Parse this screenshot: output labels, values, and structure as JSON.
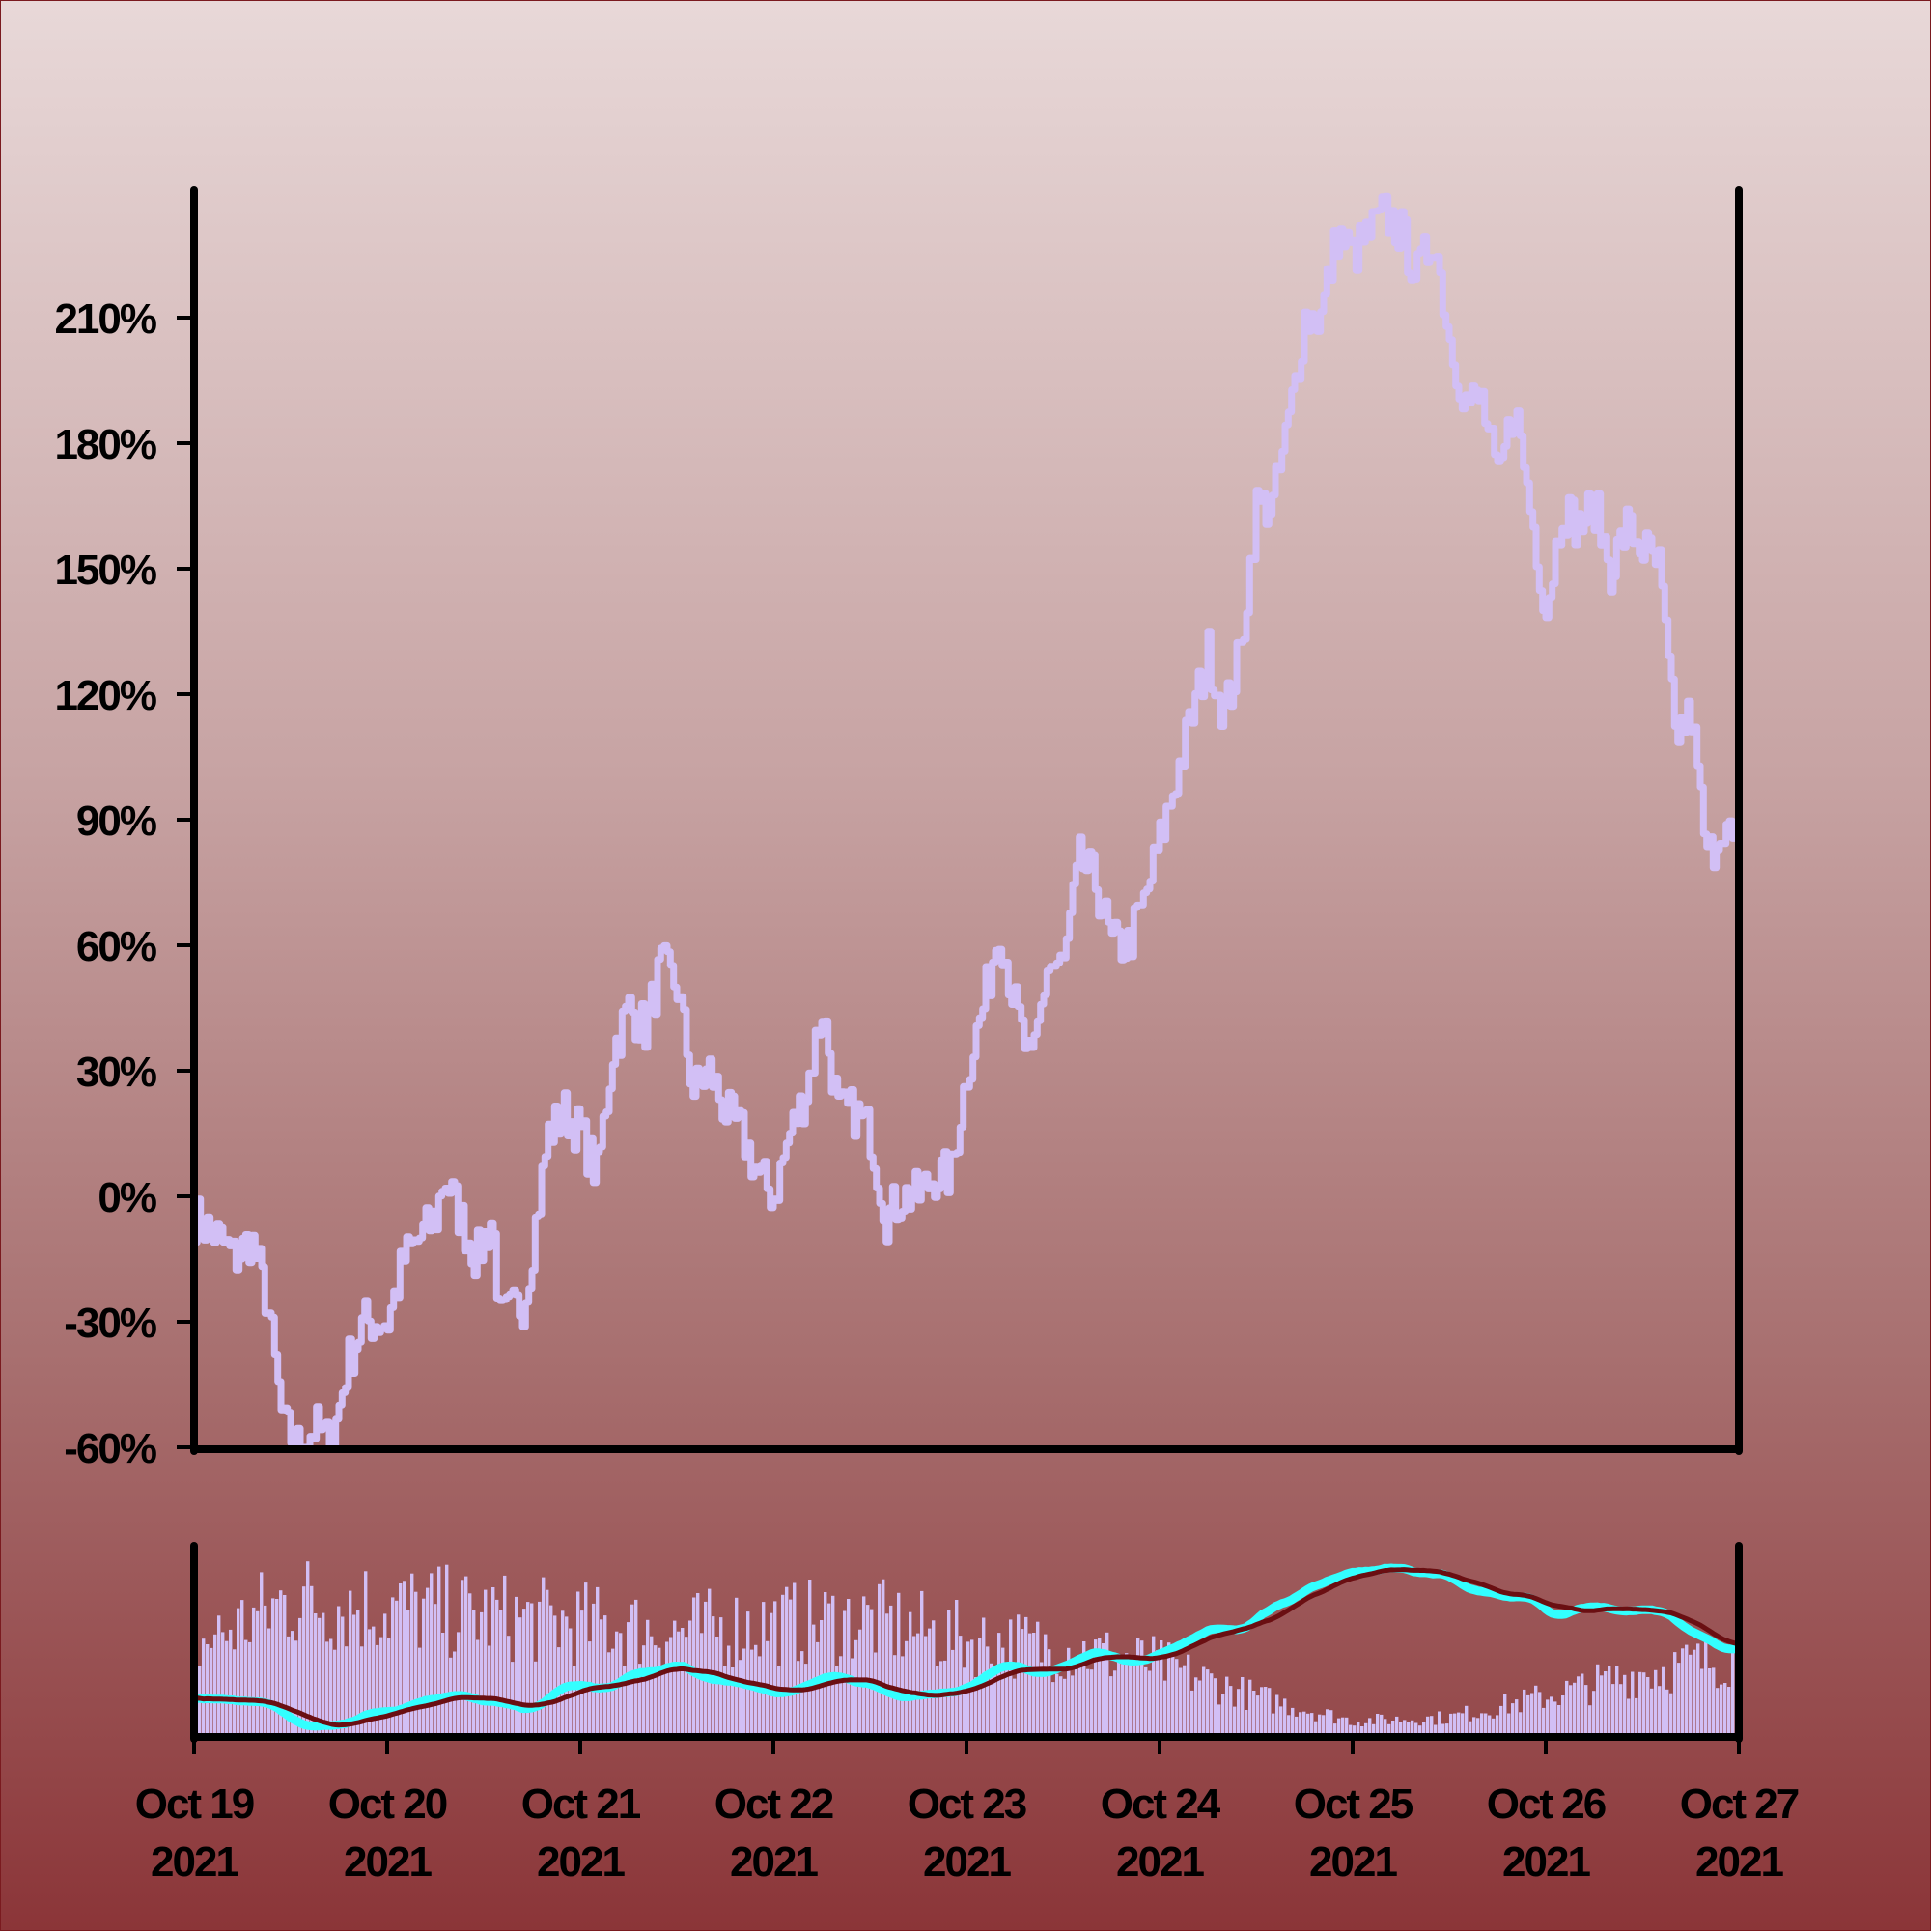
{
  "colors": {
    "price_line": "#d2bff5",
    "volume_bars": "#d2bff5",
    "ma_fast": "#33ffff",
    "ma_slow": "#6a0f12",
    "axes": "#000000",
    "background_top": "#e8d8d8",
    "background_bottom": "#8b3538"
  },
  "chart_data": [
    {
      "type": "line",
      "title": "",
      "xlabel": "",
      "ylabel": "",
      "y_unit": "%",
      "xlim": [
        "2021-10-19",
        "2021-10-27"
      ],
      "ylim": [
        -60,
        240
      ],
      "yticks": [
        -60,
        -30,
        0,
        30,
        60,
        90,
        120,
        150,
        180,
        210
      ],
      "ytick_labels": [
        "-60%",
        "-30%",
        "0%",
        "30%",
        "60%",
        "90%",
        "120%",
        "150%",
        "180%",
        "210%"
      ],
      "grid": false,
      "series": [
        {
          "points": [
            [
              "2021-10-19T00:00",
              -5
            ],
            [
              "2021-10-19T03:00",
              -10
            ],
            [
              "2021-10-19T05:00",
              -15
            ],
            [
              "2021-10-19T07:00",
              -10
            ],
            [
              "2021-10-19T09:00",
              -25
            ],
            [
              "2021-10-19T11:00",
              -55
            ],
            [
              "2021-10-19T13:00",
              -60
            ],
            [
              "2021-10-19T15:00",
              -55
            ],
            [
              "2021-10-19T17:00",
              -60
            ],
            [
              "2021-10-19T19:00",
              -40
            ],
            [
              "2021-10-19T21:00",
              -30
            ],
            [
              "2021-10-20T00:00",
              -30
            ],
            [
              "2021-10-20T02:00",
              -15
            ],
            [
              "2021-10-20T04:00",
              -10
            ],
            [
              "2021-10-20T06:00",
              -5
            ],
            [
              "2021-10-20T07:00",
              5
            ],
            [
              "2021-10-20T09:00",
              -5
            ],
            [
              "2021-10-20T11:00",
              -15
            ],
            [
              "2021-10-20T13:00",
              -5
            ],
            [
              "2021-10-20T14:00",
              -30
            ],
            [
              "2021-10-20T17:00",
              -25
            ],
            [
              "2021-10-20T20:00",
              15
            ],
            [
              "2021-10-20T22:00",
              20
            ],
            [
              "2021-10-21T00:00",
              15
            ],
            [
              "2021-10-21T02:00",
              5
            ],
            [
              "2021-10-21T04:00",
              35
            ],
            [
              "2021-10-21T06:00",
              45
            ],
            [
              "2021-10-21T08:00",
              40
            ],
            [
              "2021-10-21T10:00",
              55
            ],
            [
              "2021-10-21T12:00",
              50
            ],
            [
              "2021-10-21T14:00",
              25
            ],
            [
              "2021-10-21T16:00",
              30
            ],
            [
              "2021-10-21T18:00",
              20
            ],
            [
              "2021-10-21T20:00",
              15
            ],
            [
              "2021-10-21T22:00",
              5
            ],
            [
              "2021-10-22T00:00",
              0
            ],
            [
              "2021-10-22T02:00",
              15
            ],
            [
              "2021-10-22T04:00",
              25
            ],
            [
              "2021-10-22T06:00",
              45
            ],
            [
              "2021-10-22T08:00",
              20
            ],
            [
              "2021-10-22T10:00",
              20
            ],
            [
              "2021-10-22T12:00",
              15
            ],
            [
              "2021-10-22T14:00",
              -5
            ],
            [
              "2021-10-22T16:00",
              0
            ],
            [
              "2021-10-22T18:00",
              0
            ],
            [
              "2021-10-22T20:00",
              5
            ],
            [
              "2021-10-22T22:00",
              5
            ],
            [
              "2021-10-23T00:00",
              30
            ],
            [
              "2021-10-23T02:00",
              45
            ],
            [
              "2021-10-23T04:00",
              65
            ],
            [
              "2021-10-23T06:00",
              45
            ],
            [
              "2021-10-23T08:00",
              30
            ],
            [
              "2021-10-23T10:00",
              55
            ],
            [
              "2021-10-23T12:00",
              55
            ],
            [
              "2021-10-23T14:00",
              80
            ],
            [
              "2021-10-23T16:00",
              75
            ],
            [
              "2021-10-23T18:00",
              60
            ],
            [
              "2021-10-23T20:00",
              60
            ],
            [
              "2021-10-23T22:00",
              70
            ],
            [
              "2021-10-24T00:00",
              85
            ],
            [
              "2021-10-24T02:00",
              100
            ],
            [
              "2021-10-24T04:00",
              115
            ],
            [
              "2021-10-24T06:00",
              130
            ],
            [
              "2021-10-24T08:00",
              115
            ],
            [
              "2021-10-24T10:00",
              130
            ],
            [
              "2021-10-24T12:00",
              165
            ],
            [
              "2021-10-24T14:00",
              165
            ],
            [
              "2021-10-24T16:00",
              185
            ],
            [
              "2021-10-24T18:00",
              210
            ],
            [
              "2021-10-24T20:00",
              210
            ],
            [
              "2021-10-24T22:00",
              230
            ],
            [
              "2021-10-25T00:00",
              225
            ],
            [
              "2021-10-25T02:00",
              230
            ],
            [
              "2021-10-25T04:00",
              235
            ],
            [
              "2021-10-25T06:00",
              230
            ],
            [
              "2021-10-25T08:00",
              220
            ],
            [
              "2021-10-25T10:00",
              230
            ],
            [
              "2021-10-25T12:00",
              205
            ],
            [
              "2021-10-25T14:00",
              190
            ],
            [
              "2021-10-25T16:00",
              190
            ],
            [
              "2021-10-25T18:00",
              170
            ],
            [
              "2021-10-25T20:00",
              190
            ],
            [
              "2021-10-25T22:00",
              165
            ],
            [
              "2021-10-26T00:00",
              140
            ],
            [
              "2021-10-26T02:00",
              165
            ],
            [
              "2021-10-26T04:00",
              160
            ],
            [
              "2021-10-26T06:00",
              165
            ],
            [
              "2021-10-26T08:00",
              150
            ],
            [
              "2021-10-26T10:00",
              160
            ],
            [
              "2021-10-26T12:00",
              155
            ],
            [
              "2021-10-26T14:00",
              150
            ],
            [
              "2021-10-26T16:00",
              110
            ],
            [
              "2021-10-26T18:00",
              115
            ],
            [
              "2021-10-26T20:00",
              80
            ],
            [
              "2021-10-26T22:00",
              90
            ],
            [
              "2021-10-27T00:00",
              80
            ]
          ]
        }
      ]
    },
    {
      "type": "bar",
      "title": "",
      "xlabel": "",
      "ylabel": "",
      "xlim": [
        "2021-10-19",
        "2021-10-27"
      ],
      "xtick_labels": [
        "Oct 19\n2021",
        "Oct 20\n2021",
        "Oct 21\n2021",
        "Oct 22\n2021",
        "Oct 23\n2021",
        "Oct 24\n2021",
        "Oct 25\n2021",
        "Oct 26\n2021",
        "Oct 27\n2021"
      ],
      "xtick_lines": [
        [
          "Oct 19",
          "2021"
        ],
        [
          "Oct 20",
          "2021"
        ],
        [
          "Oct 21",
          "2021"
        ],
        [
          "Oct 22",
          "2021"
        ],
        [
          "Oct 23",
          "2021"
        ],
        [
          "Oct 24",
          "2021"
        ],
        [
          "Oct 25",
          "2021"
        ],
        [
          "Oct 26",
          "2021"
        ],
        [
          "Oct 27",
          "2021"
        ]
      ],
      "volume_profile": [
        [
          "2021-10-19T00:00",
          0.55
        ],
        [
          "2021-10-19T12:00",
          0.85
        ],
        [
          "2021-10-20T00:00",
          0.8
        ],
        [
          "2021-10-20T12:00",
          0.75
        ],
        [
          "2021-10-21T00:00",
          0.7
        ],
        [
          "2021-10-21T12:00",
          0.65
        ],
        [
          "2021-10-22T00:00",
          0.7
        ],
        [
          "2021-10-22T12:00",
          0.72
        ],
        [
          "2021-10-23T00:00",
          0.6
        ],
        [
          "2021-10-23T12:00",
          0.55
        ],
        [
          "2021-10-24T00:00",
          0.45
        ],
        [
          "2021-10-24T12:00",
          0.25
        ],
        [
          "2021-10-25T00:00",
          0.1
        ],
        [
          "2021-10-25T12:00",
          0.12
        ],
        [
          "2021-10-26T00:00",
          0.25
        ],
        [
          "2021-10-26T12:00",
          0.4
        ],
        [
          "2021-10-27T00:00",
          0.5
        ]
      ],
      "series": [
        {
          "name": "",
          "kind": "moving_average_fast",
          "note_color": "ma_fast"
        },
        {
          "name": "",
          "kind": "moving_average_slow",
          "note_color": "ma_slow"
        }
      ]
    }
  ]
}
